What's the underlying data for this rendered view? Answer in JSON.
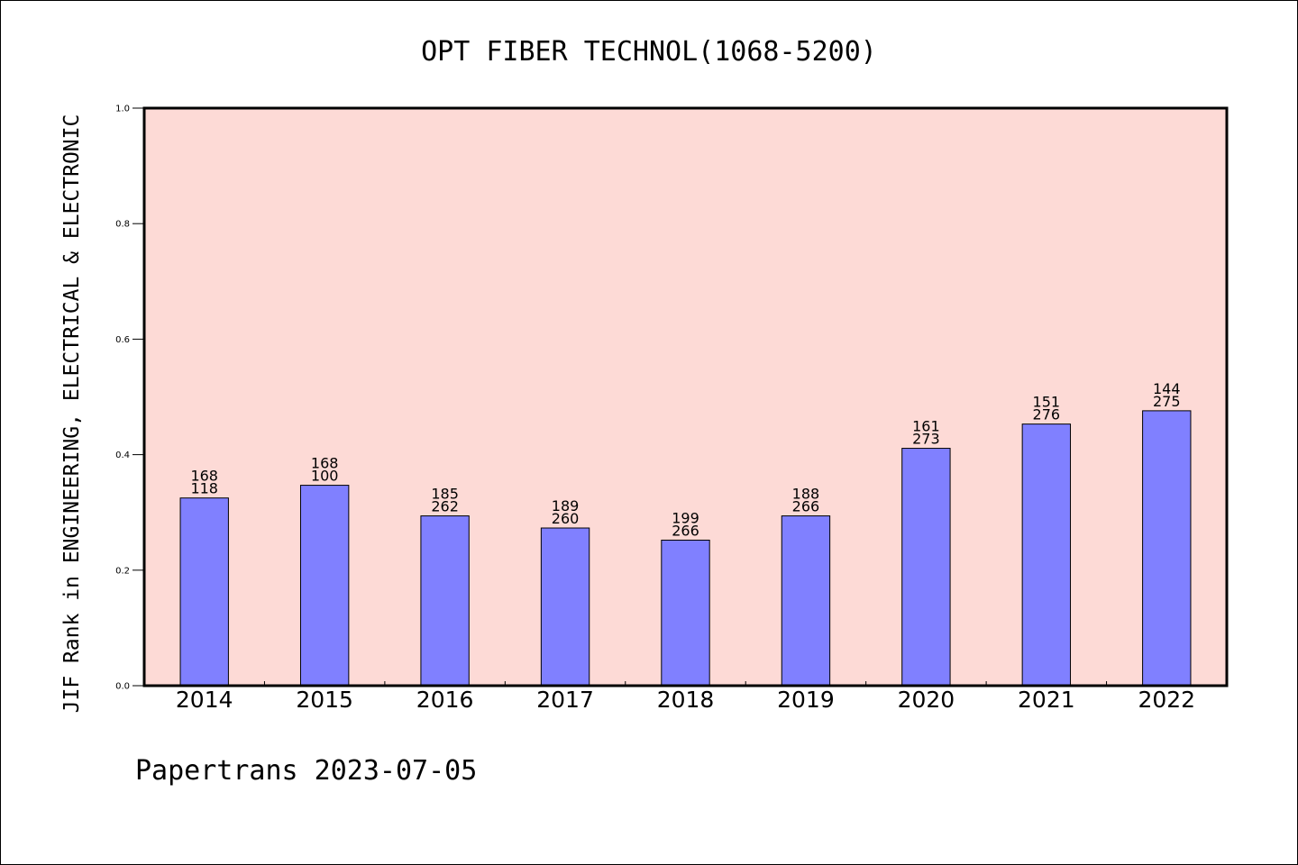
{
  "chart_data": {
    "type": "bar",
    "title": "OPT FIBER TECHNOL(1068-5200)",
    "xlabel": "",
    "ylabel": "JIF Rank in ENGINEERING, ELECTRICAL & ELECTRONIC",
    "ylim": [
      0,
      1.0
    ],
    "yticks": [
      "0.0",
      "0.2",
      "0.4",
      "0.6",
      "0.8",
      "1.0"
    ],
    "categories": [
      "2014",
      "2015",
      "2016",
      "2017",
      "2018",
      "2019",
      "2020",
      "2021",
      "2022"
    ],
    "values": [
      0.325,
      0.347,
      0.294,
      0.273,
      0.252,
      0.294,
      0.411,
      0.453,
      0.476
    ],
    "rank_labels": [
      "168",
      "168",
      "185",
      "189",
      "199",
      "188",
      "161",
      "151",
      "144"
    ],
    "total_labels": [
      "118",
      "100",
      "262",
      "260",
      "266",
      "266",
      "273",
      "276",
      "275"
    ],
    "grid": false,
    "legend": "none",
    "colors": {
      "plot_background": "#fddad6",
      "bar_fill": "#8080ff",
      "bar_stroke": "#000000"
    }
  },
  "footer": {
    "credit": "Papertrans 2023-07-05"
  }
}
